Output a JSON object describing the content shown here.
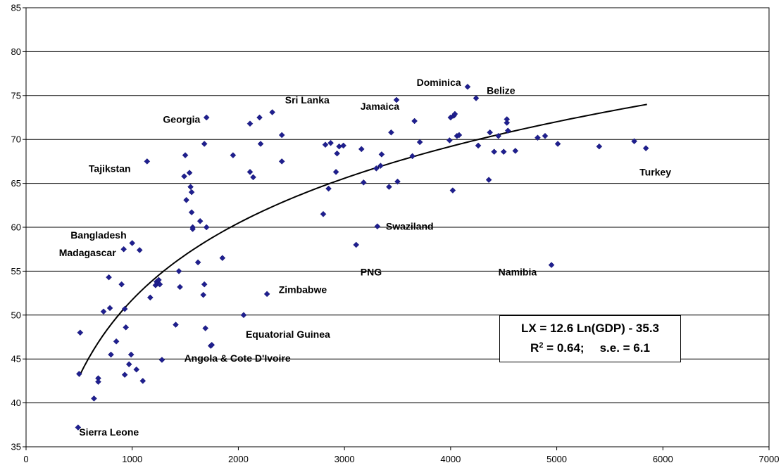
{
  "chart_data": {
    "type": "scatter",
    "title": "",
    "xlabel": "",
    "ylabel": "",
    "xlim": [
      0,
      7000
    ],
    "ylim": [
      35,
      85
    ],
    "x_ticks": [
      "0",
      "1000",
      "2000",
      "3000",
      "4000",
      "5000",
      "6000",
      "7000"
    ],
    "y_ticks": [
      "35",
      "40",
      "45",
      "50",
      "55",
      "60",
      "65",
      "70",
      "75",
      "80",
      "85"
    ],
    "grid": "horizontal",
    "marker_color": "#1f1f8f",
    "points": [
      [
        490,
        37.2
      ],
      [
        500,
        43.3
      ],
      [
        510,
        48
      ],
      [
        640,
        40.5
      ],
      [
        680,
        42.8
      ],
      [
        680,
        42.4
      ],
      [
        730,
        50.4
      ],
      [
        780,
        54.3
      ],
      [
        790,
        50.8
      ],
      [
        800,
        45.5
      ],
      [
        850,
        47
      ],
      [
        900,
        53.5
      ],
      [
        920,
        57.5
      ],
      [
        930,
        50.7
      ],
      [
        930,
        43.2
      ],
      [
        940,
        48.6
      ],
      [
        970,
        44.4
      ],
      [
        990,
        45.5
      ],
      [
        1000,
        58.2
      ],
      [
        1040,
        43.8
      ],
      [
        1070,
        57.4
      ],
      [
        1100,
        42.5
      ],
      [
        1140,
        67.5
      ],
      [
        1170,
        52
      ],
      [
        1220,
        53.4
      ],
      [
        1230,
        53.8
      ],
      [
        1240,
        53.6
      ],
      [
        1250,
        54
      ],
      [
        1260,
        53.5
      ],
      [
        1280,
        44.9
      ],
      [
        1410,
        48.9
      ],
      [
        1440,
        55
      ],
      [
        1450,
        53.2
      ],
      [
        1490,
        65.8
      ],
      [
        1500,
        68.2
      ],
      [
        1510,
        63.1
      ],
      [
        1540,
        66.2
      ],
      [
        1550,
        64.6
      ],
      [
        1560,
        64
      ],
      [
        1560,
        61.7
      ],
      [
        1570,
        60
      ],
      [
        1570,
        59.8
      ],
      [
        1620,
        56
      ],
      [
        1640,
        60.7
      ],
      [
        1670,
        52.3
      ],
      [
        1680,
        53.5
      ],
      [
        1680,
        69.5
      ],
      [
        1690,
        48.5
      ],
      [
        1700,
        72.5
      ],
      [
        1700,
        60
      ],
      [
        1740,
        46.5
      ],
      [
        1750,
        46.6
      ],
      [
        1850,
        56.5
      ],
      [
        1950,
        68.2
      ],
      [
        2050,
        50
      ],
      [
        2110,
        66.3
      ],
      [
        2110,
        71.8
      ],
      [
        2140,
        65.7
      ],
      [
        2200,
        72.5
      ],
      [
        2210,
        69.5
      ],
      [
        2270,
        52.4
      ],
      [
        2320,
        73.1
      ],
      [
        2410,
        70.5
      ],
      [
        2410,
        67.5
      ],
      [
        2800,
        61.5
      ],
      [
        2820,
        69.4
      ],
      [
        2850,
        64.4
      ],
      [
        2870,
        69.6
      ],
      [
        2920,
        66.3
      ],
      [
        2930,
        68.4
      ],
      [
        2950,
        69.2
      ],
      [
        2990,
        69.3
      ],
      [
        3110,
        58
      ],
      [
        3160,
        68.9
      ],
      [
        3180,
        65.1
      ],
      [
        3300,
        66.7
      ],
      [
        3310,
        60.1
      ],
      [
        3340,
        67
      ],
      [
        3350,
        68.3
      ],
      [
        3420,
        64.6
      ],
      [
        3440,
        70.8
      ],
      [
        3490,
        74.5
      ],
      [
        3500,
        65.2
      ],
      [
        3640,
        68.1
      ],
      [
        3660,
        72.1
      ],
      [
        3710,
        69.7
      ],
      [
        3990,
        69.9
      ],
      [
        4000,
        72.5
      ],
      [
        4020,
        64.2
      ],
      [
        4030,
        72.7
      ],
      [
        4040,
        72.9
      ],
      [
        4060,
        70.4
      ],
      [
        4080,
        70.5
      ],
      [
        4160,
        76
      ],
      [
        4240,
        74.7
      ],
      [
        4260,
        69.3
      ],
      [
        4360,
        65.4
      ],
      [
        4370,
        70.8
      ],
      [
        4410,
        68.6
      ],
      [
        4450,
        70.4
      ],
      [
        4500,
        68.6
      ],
      [
        4530,
        71.9
      ],
      [
        4530,
        72.3
      ],
      [
        4540,
        71
      ],
      [
        4610,
        68.7
      ],
      [
        4820,
        70.2
      ],
      [
        4890,
        70.4
      ],
      [
        4950,
        55.7
      ],
      [
        5010,
        69.5
      ],
      [
        5400,
        69.2
      ],
      [
        5730,
        69.8
      ],
      [
        5840,
        69
      ]
    ],
    "trend": {
      "a": 12.6,
      "b": -35.3,
      "x_from": 500,
      "x_to": 5850
    },
    "annotations": [
      {
        "text": "Sierra Leone",
        "x": 500,
        "y": 36.3,
        "anchor": "start"
      },
      {
        "text": "Madagascar",
        "x": 310,
        "y": 56.7,
        "anchor": "start"
      },
      {
        "text": "Bangladesh",
        "x": 420,
        "y": 58.7,
        "anchor": "start"
      },
      {
        "text": "Tajikstan",
        "x": 590,
        "y": 66.3,
        "anchor": "start"
      },
      {
        "text": "Georgia",
        "x": 1290,
        "y": 71.9,
        "anchor": "start"
      },
      {
        "text": "Sri Lanka",
        "x": 2440,
        "y": 74.1,
        "anchor": "start"
      },
      {
        "text": "Jamaica",
        "x": 3150,
        "y": 73.4,
        "anchor": "start"
      },
      {
        "text": "Dominica",
        "x": 3680,
        "y": 76.1,
        "anchor": "start"
      },
      {
        "text": "Belize",
        "x": 4340,
        "y": 75.2,
        "anchor": "start"
      },
      {
        "text": "Turkey",
        "x": 5780,
        "y": 65.9,
        "anchor": "start"
      },
      {
        "text": "Swaziland",
        "x": 3390,
        "y": 59.7,
        "anchor": "start"
      },
      {
        "text": "PNG",
        "x": 3150,
        "y": 54.5,
        "anchor": "start"
      },
      {
        "text": "Namibia",
        "x": 4450,
        "y": 54.5,
        "anchor": "start"
      },
      {
        "text": "Zimbabwe",
        "x": 2380,
        "y": 52.5,
        "anchor": "start"
      },
      {
        "text": "Equatorial Guinea",
        "x": 2070,
        "y": 47.4,
        "anchor": "start"
      },
      {
        "text": "Angola & Cote D'Ivoire",
        "x": 1490,
        "y": 44.7,
        "anchor": "start"
      }
    ]
  },
  "equation_box": {
    "line1": "LX = 12.6 Ln(GDP) - 35.3",
    "r2_prefix": "R",
    "r2_exponent": "2",
    "r2_value": " = 0.64;",
    "se": "s.e. = 6.1"
  }
}
